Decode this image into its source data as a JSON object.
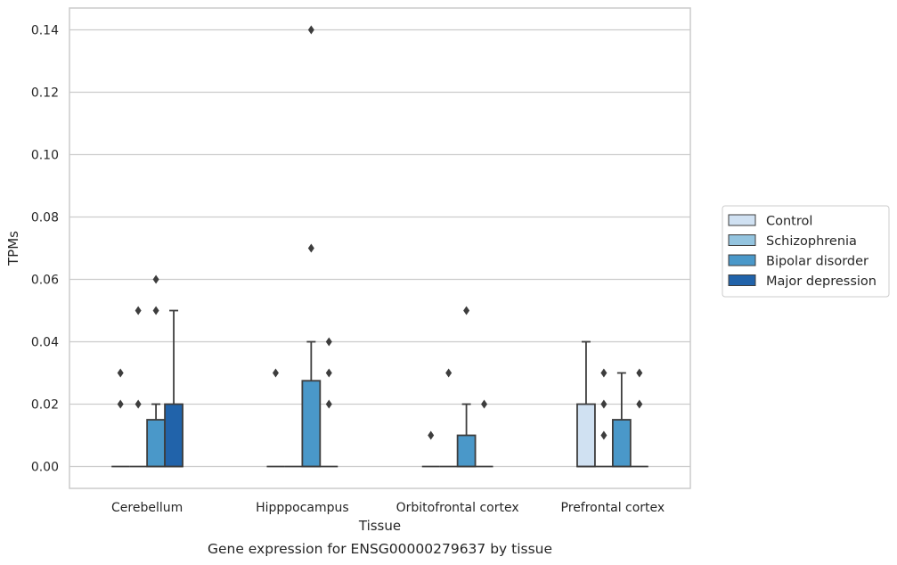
{
  "caption": "Gene expression for ENSG00000279637 by tissue",
  "chart_data": {
    "type": "box",
    "xlabel": "Tissue",
    "ylabel": "TPMs",
    "ylim": [
      -0.007,
      0.147
    ],
    "yticks": [
      0.0,
      0.02,
      0.04,
      0.06,
      0.08,
      0.1,
      0.12,
      0.14
    ],
    "ytick_labels": [
      "0.00",
      "0.02",
      "0.04",
      "0.06",
      "0.08",
      "0.10",
      "0.12",
      "0.14"
    ],
    "grid": true,
    "legend_position": "right",
    "categories": [
      "Cerebellum",
      "Hipppocampus",
      "Orbitofrontal cortex",
      "Prefrontal cortex"
    ],
    "series": [
      {
        "name": "Control",
        "color": "#d0e1f2",
        "boxes": [
          {
            "q1": 0,
            "median": 0,
            "q3": 0,
            "whisker_low": 0,
            "whisker_high": 0,
            "outliers": [
              0.02,
              0.03
            ]
          },
          {
            "q1": 0,
            "median": 0,
            "q3": 0,
            "whisker_low": 0,
            "whisker_high": 0,
            "outliers": [
              0.03
            ]
          },
          {
            "q1": 0,
            "median": 0,
            "q3": 0,
            "whisker_low": 0,
            "whisker_high": 0,
            "outliers": [
              0.01
            ]
          },
          {
            "q1": 0,
            "median": 0,
            "q3": 0.02,
            "whisker_low": 0,
            "whisker_high": 0.04,
            "outliers": []
          }
        ]
      },
      {
        "name": "Schizophrenia",
        "color": "#94c4df",
        "boxes": [
          {
            "q1": 0,
            "median": 0,
            "q3": 0,
            "whisker_low": 0,
            "whisker_high": 0,
            "outliers": [
              0.02,
              0.05
            ]
          },
          {
            "q1": 0,
            "median": 0,
            "q3": 0,
            "whisker_low": 0,
            "whisker_high": 0,
            "outliers": []
          },
          {
            "q1": 0,
            "median": 0,
            "q3": 0,
            "whisker_low": 0,
            "whisker_high": 0,
            "outliers": [
              0.03
            ]
          },
          {
            "q1": 0,
            "median": 0,
            "q3": 0,
            "whisker_low": 0,
            "whisker_high": 0,
            "outliers": [
              0.01,
              0.02,
              0.03
            ]
          }
        ]
      },
      {
        "name": "Bipolar disorder",
        "color": "#4a98c9",
        "boxes": [
          {
            "q1": 0,
            "median": 0,
            "q3": 0.015,
            "whisker_low": 0,
            "whisker_high": 0.02,
            "outliers": [
              0.05,
              0.06
            ]
          },
          {
            "q1": 0,
            "median": 0,
            "q3": 0.0275,
            "whisker_low": 0,
            "whisker_high": 0.04,
            "outliers": [
              0.07,
              0.14
            ]
          },
          {
            "q1": 0,
            "median": 0,
            "q3": 0.01,
            "whisker_low": 0,
            "whisker_high": 0.02,
            "outliers": [
              0.05
            ]
          },
          {
            "q1": 0,
            "median": 0,
            "q3": 0.015,
            "whisker_low": 0,
            "whisker_high": 0.03,
            "outliers": []
          }
        ]
      },
      {
        "name": "Major depression",
        "color": "#2163aa",
        "boxes": [
          {
            "q1": 0,
            "median": 0,
            "q3": 0.02,
            "whisker_low": 0,
            "whisker_high": 0.05,
            "outliers": []
          },
          {
            "q1": 0,
            "median": 0,
            "q3": 0,
            "whisker_low": 0,
            "whisker_high": 0,
            "outliers": [
              0.02,
              0.03,
              0.04
            ]
          },
          {
            "q1": 0,
            "median": 0,
            "q3": 0,
            "whisker_low": 0,
            "whisker_high": 0,
            "outliers": [
              0.02
            ]
          },
          {
            "q1": 0,
            "median": 0,
            "q3": 0,
            "whisker_low": 0,
            "whisker_high": 0,
            "outliers": [
              0.02,
              0.03
            ]
          }
        ]
      }
    ]
  }
}
